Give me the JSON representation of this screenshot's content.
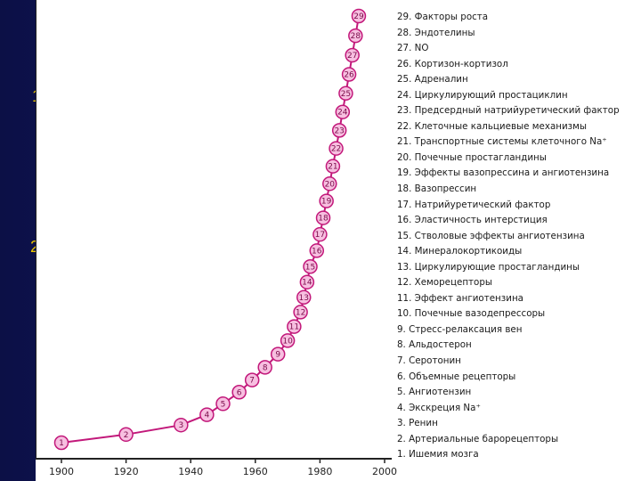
{
  "background_fragments": [
    "1",
    "2"
  ],
  "colors": {
    "curve": "#c2187a",
    "point_fill": "#f7bfe0",
    "point_stroke": "#c2187a",
    "axis": "#222222"
  },
  "chart_data": {
    "type": "scatter",
    "title": "",
    "xlabel": "",
    "ylabel": "",
    "xlim": [
      1900,
      2000
    ],
    "x_ticks": [
      1900,
      1920,
      1940,
      1960,
      1980,
      2000
    ],
    "grid": false,
    "legend_position": "right",
    "series": [
      {
        "points": [
          {
            "n": 1,
            "year": 1900
          },
          {
            "n": 2,
            "year": 1920
          },
          {
            "n": 3,
            "year": 1937
          },
          {
            "n": 4,
            "year": 1945
          },
          {
            "n": 5,
            "year": 1950
          },
          {
            "n": 6,
            "year": 1955
          },
          {
            "n": 7,
            "year": 1959
          },
          {
            "n": 8,
            "year": 1963
          },
          {
            "n": 9,
            "year": 1967
          },
          {
            "n": 10,
            "year": 1970
          },
          {
            "n": 11,
            "year": 1972
          },
          {
            "n": 12,
            "year": 1974
          },
          {
            "n": 13,
            "year": 1975
          },
          {
            "n": 14,
            "year": 1976
          },
          {
            "n": 15,
            "year": 1977
          },
          {
            "n": 16,
            "year": 1979
          },
          {
            "n": 17,
            "year": 1980
          },
          {
            "n": 18,
            "year": 1981
          },
          {
            "n": 19,
            "year": 1982
          },
          {
            "n": 20,
            "year": 1983
          },
          {
            "n": 21,
            "year": 1984
          },
          {
            "n": 22,
            "year": 1985
          },
          {
            "n": 23,
            "year": 1986
          },
          {
            "n": 24,
            "year": 1987
          },
          {
            "n": 25,
            "year": 1988
          },
          {
            "n": 26,
            "year": 1989
          },
          {
            "n": 27,
            "year": 1990
          },
          {
            "n": 28,
            "year": 1991
          },
          {
            "n": 29,
            "year": 1992
          }
        ]
      }
    ],
    "legend": [
      "29. Факторы роста",
      "28. Эндотелины",
      "27. NO",
      "26. Кортизон-кортизол",
      "25. Адреналин",
      "24. Циркулирующий простациклин",
      "23. Предсердный натрийуретический фактор",
      "22. Клеточные кальциевые механизмы",
      "21. Транспортные системы клеточного Na⁺",
      "20. Почечные простагландины",
      "19. Эффекты вазопрессина и ангиотензина",
      "18. Вазопрессин",
      "17. Натрийуретический фактор",
      "16. Эластичность интерстиция",
      "15. Стволовые эффекты ангиотензина",
      "14. Минералокортикоиды",
      "13. Циркулирующие простагландины",
      "12. Хеморецепторы",
      "11. Эффект ангиотензина",
      "10. Почечные вазодепрессоры",
      "9. Стресс-релаксация вен",
      "8. Альдостерон",
      "7. Серотонин",
      "6. Объемные рецепторы",
      "5. Ангиотензин",
      "4. Экскреция Na⁺",
      "3. Ренин",
      "2. Артериальные барорецепторы",
      "1. Ишемия мозга"
    ]
  }
}
